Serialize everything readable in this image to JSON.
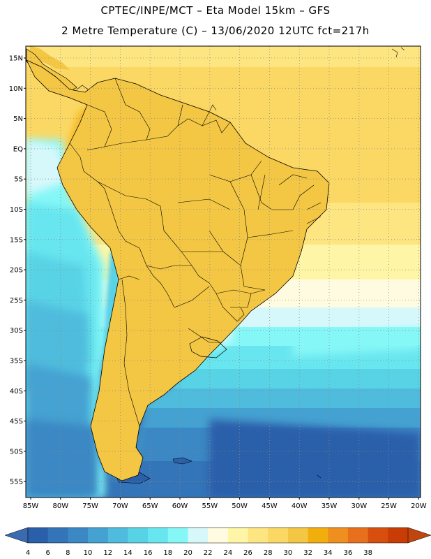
{
  "header": {
    "title_line1": "CPTEC/INPE/MCT –  Eta Model 15km – GFS",
    "title_line2": "2 Metre Temperature (C) – 13/06/2020 12UTC fct=217h"
  },
  "map": {
    "lat_labels": [
      "15N",
      "10N",
      "5N",
      "EQ",
      "5S",
      "10S",
      "15S",
      "20S",
      "25S",
      "30S",
      "35S",
      "40S",
      "45S",
      "50S",
      "55S"
    ],
    "lon_labels": [
      "85W",
      "80W",
      "75W",
      "70W",
      "65W",
      "60W",
      "55W",
      "50W",
      "45W",
      "40W",
      "35W",
      "30W",
      "25W",
      "20W"
    ],
    "region": "South America",
    "variable": "2 Metre Temperature (C)"
  },
  "colorbar": {
    "labels": [
      "4",
      "6",
      "8",
      "10",
      "12",
      "14",
      "16",
      "18",
      "20",
      "22",
      "24",
      "26",
      "28",
      "30",
      "32",
      "34",
      "36",
      "38"
    ],
    "colors": [
      "#2a5faa",
      "#3474b8",
      "#3b88c4",
      "#44a2d2",
      "#4fbcdd",
      "#58d3e6",
      "#68e6ef",
      "#86f7f7",
      "#d7f8fb",
      "#fffbe0",
      "#fef6a6",
      "#fde581",
      "#fbd864",
      "#f3c643",
      "#f2ae0c",
      "#ee8f1e",
      "#e8701c",
      "#d84e0e",
      "#c93c06"
    ],
    "low_color": "#3a6bb0",
    "high_color": "#c0450e"
  }
}
